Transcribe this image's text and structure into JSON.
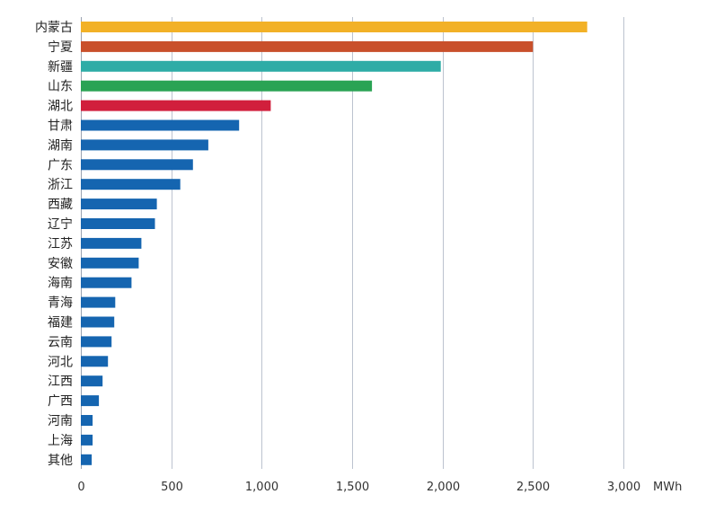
{
  "chart_data": {
    "type": "bar",
    "orientation": "horizontal",
    "categories": [
      "内蒙古",
      "宁夏",
      "新疆",
      "山东",
      "湖北",
      "甘肃",
      "湖南",
      "广东",
      "浙江",
      "西藏",
      "辽宁",
      "江苏",
      "安徽",
      "海南",
      "青海",
      "福建",
      "云南",
      "河北",
      "江西",
      "广西",
      "河南",
      "上海",
      "其他"
    ],
    "values": [
      2800,
      2500,
      1990,
      1610,
      1050,
      875,
      705,
      620,
      550,
      420,
      410,
      335,
      320,
      280,
      190,
      185,
      170,
      150,
      120,
      100,
      65,
      65,
      60
    ],
    "bar_colors": [
      "#f2b127",
      "#c9502b",
      "#2eaca6",
      "#2aa354",
      "#d11f3c",
      "#1565b0",
      "#1565b0",
      "#1565b0",
      "#1565b0",
      "#1565b0",
      "#1565b0",
      "#1565b0",
      "#1565b0",
      "#1565b0",
      "#1565b0",
      "#1565b0",
      "#1565b0",
      "#1565b0",
      "#1565b0",
      "#1565b0",
      "#1565b0",
      "#1565b0",
      "#1565b0"
    ],
    "xlim": [
      0,
      3000
    ],
    "xticks": [
      0,
      500,
      1000,
      1500,
      2000,
      2500,
      3000
    ],
    "xtick_labels": [
      "0",
      "500",
      "1,000",
      "1,500",
      "2,000",
      "2,500",
      "3,000"
    ],
    "xunit": "MWh",
    "title": "",
    "xlabel": "",
    "ylabel": "",
    "grid": "vertical",
    "legend": "none"
  }
}
